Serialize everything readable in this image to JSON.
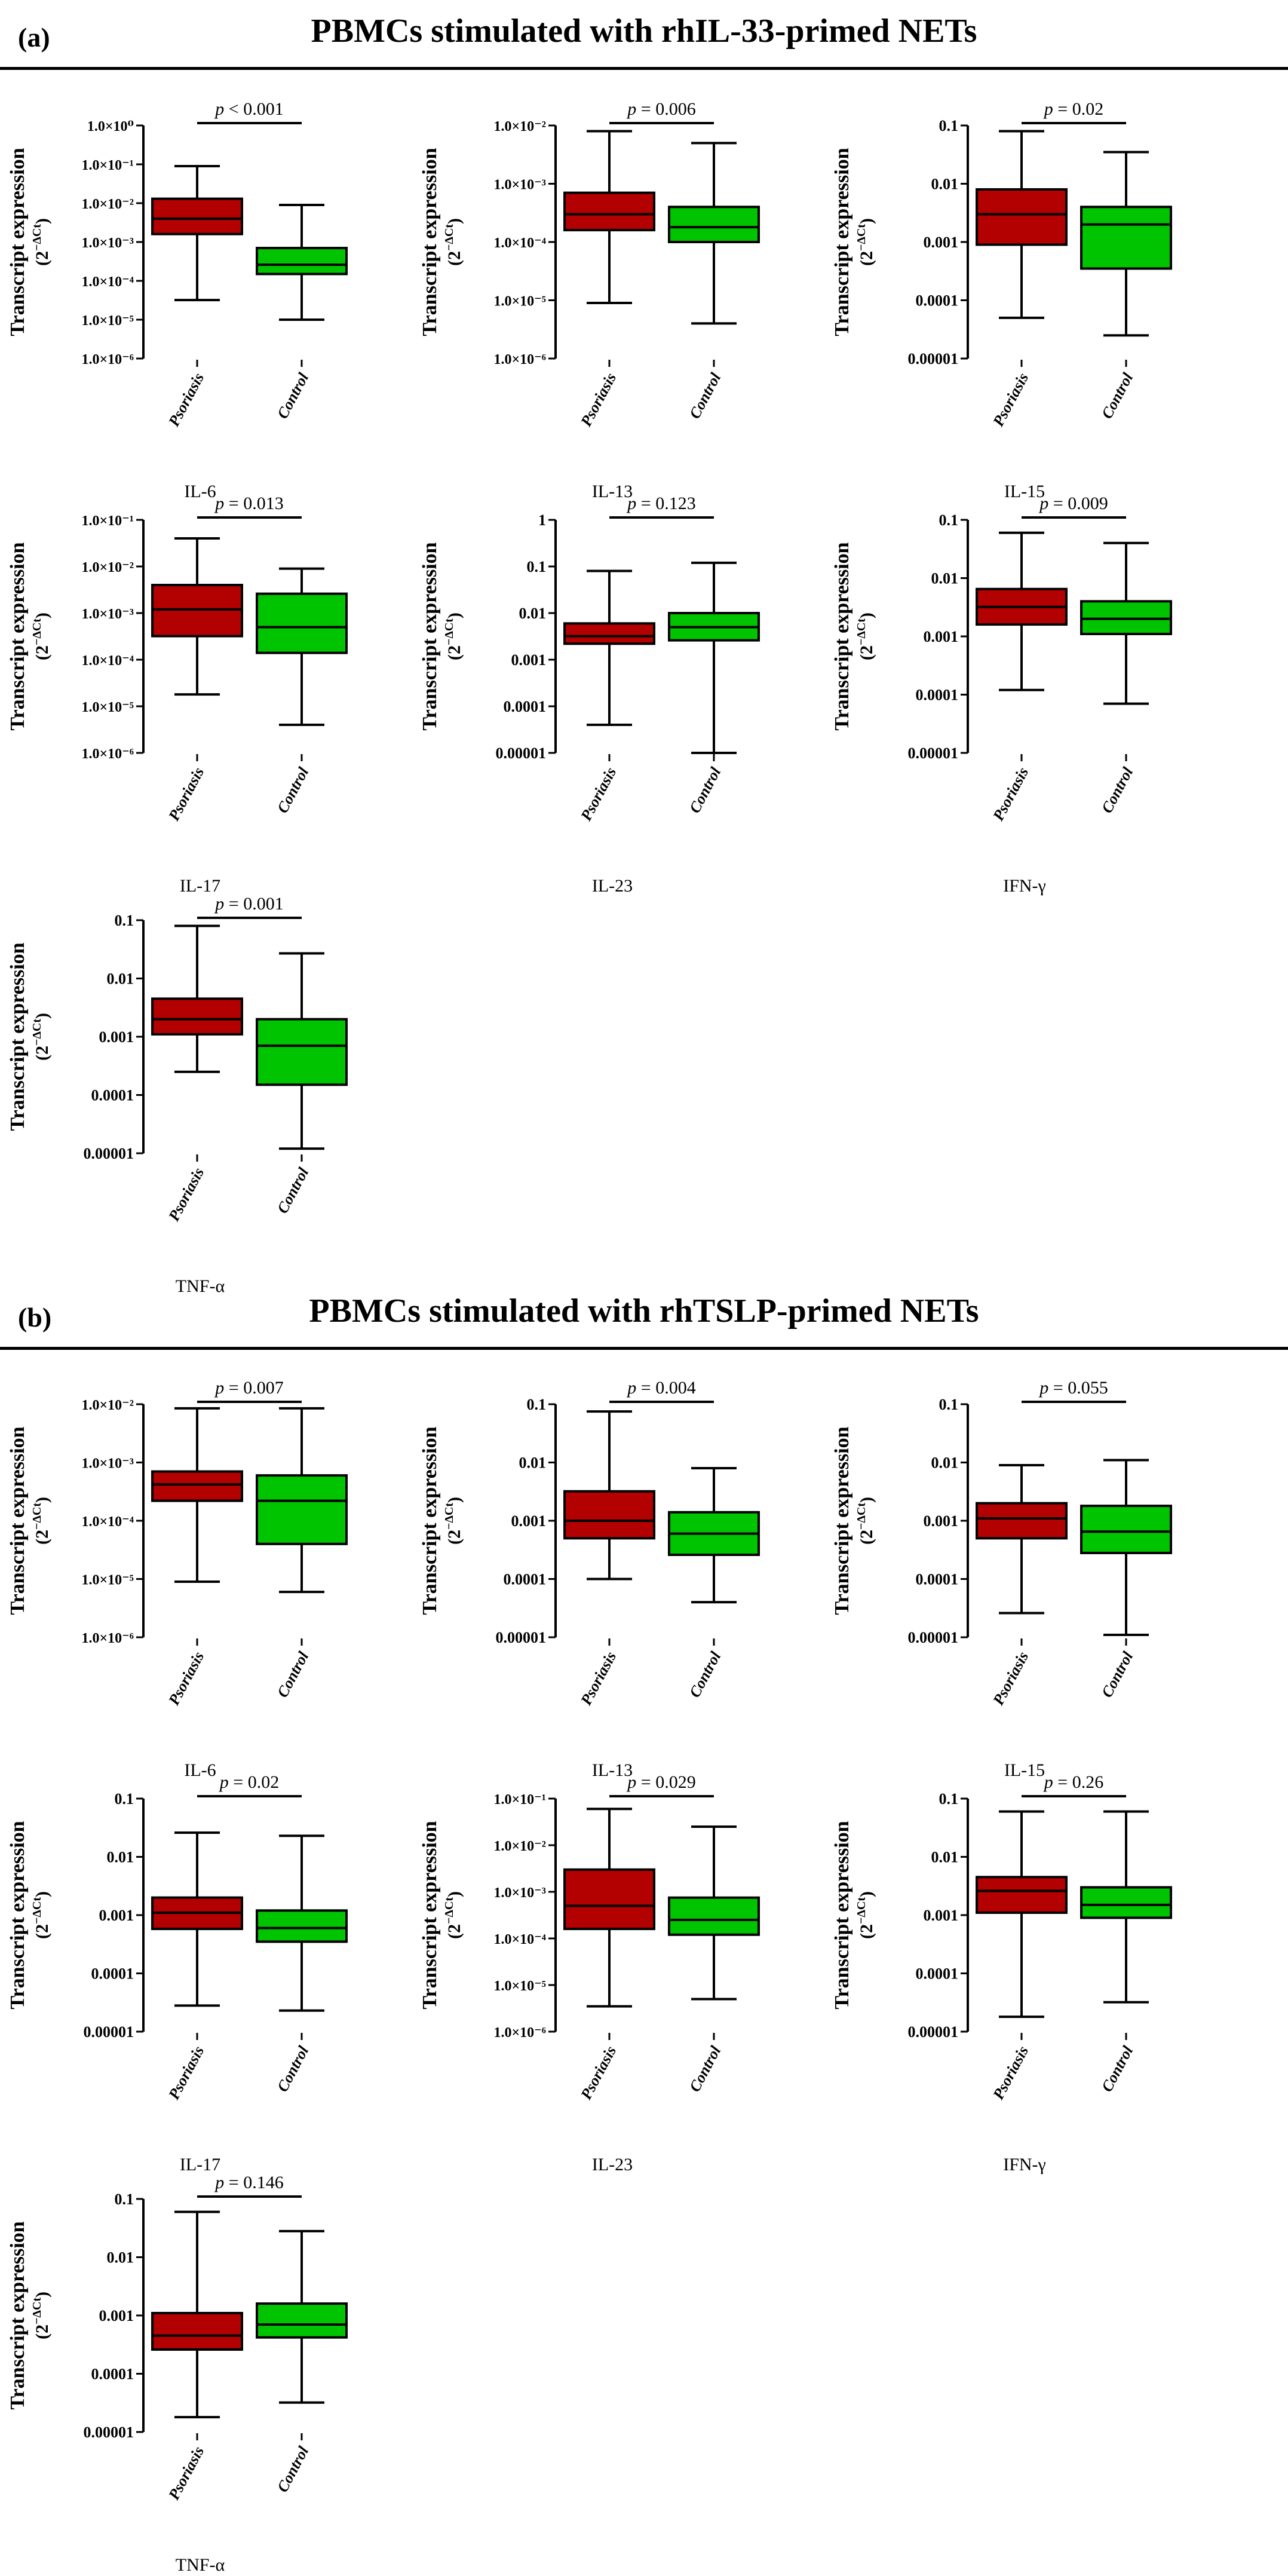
{
  "panels": [
    {
      "letter": "(a)",
      "title": "PBMCs  stimulated with rhIL-33-primed NETs"
    },
    {
      "letter": "(b)",
      "title": "PBMCs  stimulated with rhTSLP-primed NETs"
    }
  ],
  "axis_label_main": "Transcript expression",
  "axis_label_formula": "(2",
  "axis_label_exp": "−ΔCt",
  "axis_label_close": ")",
  "p_prefix": "p",
  "colors": {
    "psoriasis": "#b30000",
    "control": "#00c400"
  },
  "chart_data": [
    {
      "panel": "a",
      "type": "boxplot",
      "xlabel": "IL-6",
      "categories": [
        "Psoriasis",
        "Control"
      ],
      "p": "< 0.001",
      "yscale": "log",
      "ylim_exp": [
        -6,
        0
      ],
      "tick_style": "sci",
      "ticks": [
        "1.0×10⁰",
        "1.0×10⁻¹",
        "1.0×10⁻²",
        "1.0×10⁻³",
        "1.0×10⁻⁴",
        "1.0×10⁻⁵",
        "1.0×10⁻⁶"
      ],
      "boxes": [
        {
          "min": 3.2e-05,
          "q1": 0.0016,
          "median": 0.004,
          "q3": 0.013,
          "max": 0.09
        },
        {
          "min": 1e-05,
          "q1": 0.00015,
          "median": 0.00026,
          "q3": 0.0007,
          "max": 0.009
        }
      ]
    },
    {
      "panel": "a",
      "type": "boxplot",
      "xlabel": "IL-13",
      "categories": [
        "Psoriasis",
        "Control"
      ],
      "p": "= 0.006",
      "yscale": "log",
      "ylim_exp": [
        -6,
        -2
      ],
      "tick_style": "sci",
      "ticks": [
        "1.0×10⁻²",
        "1.0×10⁻³",
        "1.0×10⁻⁴",
        "1.0×10⁻⁵",
        "1.0×10⁻⁶"
      ],
      "boxes": [
        {
          "min": 9e-06,
          "q1": 0.00016,
          "median": 0.0003,
          "q3": 0.0007,
          "max": 0.008
        },
        {
          "min": 4e-06,
          "q1": 0.0001,
          "median": 0.00018,
          "q3": 0.0004,
          "max": 0.005
        }
      ]
    },
    {
      "panel": "a",
      "type": "boxplot",
      "xlabel": "IL-15",
      "categories": [
        "Psoriasis",
        "Control"
      ],
      "p": "= 0.02",
      "yscale": "log",
      "ylim_exp": [
        -5,
        -1
      ],
      "tick_style": "dec",
      "ticks": [
        "0.1",
        "0.01",
        "0.001",
        "0.0001",
        "0.00001"
      ],
      "boxes": [
        {
          "min": 5e-05,
          "q1": 0.0009,
          "median": 0.003,
          "q3": 0.008,
          "max": 0.08
        },
        {
          "min": 2.5e-05,
          "q1": 0.00035,
          "median": 0.002,
          "q3": 0.004,
          "max": 0.035
        }
      ]
    },
    {
      "panel": "a",
      "type": "boxplot",
      "xlabel": "IL-17",
      "categories": [
        "Psoriasis",
        "Control"
      ],
      "p": "= 0.013",
      "yscale": "log",
      "ylim_exp": [
        -6,
        -1
      ],
      "tick_style": "sci",
      "ticks": [
        "1.0×10⁻¹",
        "1.0×10⁻²",
        "1.0×10⁻³",
        "1.0×10⁻⁴",
        "1.0×10⁻⁵",
        "1.0×10⁻⁶"
      ],
      "boxes": [
        {
          "min": 1.8e-05,
          "q1": 0.00032,
          "median": 0.0012,
          "q3": 0.004,
          "max": 0.04
        },
        {
          "min": 4e-06,
          "q1": 0.00014,
          "median": 0.0005,
          "q3": 0.0026,
          "max": 0.009
        }
      ]
    },
    {
      "panel": "a",
      "type": "boxplot",
      "xlabel": "IL-23",
      "categories": [
        "Psoriasis",
        "Control"
      ],
      "p": "= 0.123",
      "yscale": "log",
      "ylim_exp": [
        -5,
        0
      ],
      "tick_style": "dec",
      "ticks": [
        "1",
        "0.1",
        "0.01",
        "0.001",
        "0.0001",
        "0.00001"
      ],
      "boxes": [
        {
          "min": 4e-05,
          "q1": 0.0022,
          "median": 0.0032,
          "q3": 0.006,
          "max": 0.08
        },
        {
          "min": 1e-05,
          "q1": 0.0026,
          "median": 0.005,
          "q3": 0.01,
          "max": 0.12
        }
      ]
    },
    {
      "panel": "a",
      "type": "boxplot",
      "xlabel": "IFN-γ",
      "categories": [
        "Psoriasis",
        "Control"
      ],
      "p": "= 0.009",
      "yscale": "log",
      "ylim_exp": [
        -5,
        -1
      ],
      "tick_style": "dec",
      "ticks": [
        "0.1",
        "0.01",
        "0.001",
        "0.0001",
        "0.00001"
      ],
      "boxes": [
        {
          "min": 0.00012,
          "q1": 0.0016,
          "median": 0.0032,
          "q3": 0.0065,
          "max": 0.06
        },
        {
          "min": 7e-05,
          "q1": 0.0011,
          "median": 0.002,
          "q3": 0.004,
          "max": 0.04
        }
      ]
    },
    {
      "panel": "a",
      "type": "boxplot",
      "xlabel": "TNF-α",
      "categories": [
        "Psoriasis",
        "Control"
      ],
      "p": "= 0.001",
      "yscale": "log",
      "ylim_exp": [
        -5,
        -1
      ],
      "tick_style": "dec",
      "ticks": [
        "0.1",
        "0.01",
        "0.001",
        "0.0001",
        "0.00001"
      ],
      "boxes": [
        {
          "min": 0.00025,
          "q1": 0.0011,
          "median": 0.002,
          "q3": 0.0045,
          "max": 0.08
        },
        {
          "min": 1.2e-05,
          "q1": 0.00015,
          "median": 0.0007,
          "q3": 0.002,
          "max": 0.027
        }
      ]
    },
    {
      "panel": "b",
      "type": "boxplot",
      "xlabel": "IL-6",
      "categories": [
        "Psoriasis",
        "Control"
      ],
      "p": "= 0.007",
      "yscale": "log",
      "ylim_exp": [
        -6,
        -2
      ],
      "tick_style": "sci",
      "ticks": [
        "1.0×10⁻²",
        "1.0×10⁻³",
        "1.0×10⁻⁴",
        "1.0×10⁻⁵",
        "1.0×10⁻⁶"
      ],
      "boxes": [
        {
          "min": 9e-06,
          "q1": 0.00022,
          "median": 0.00042,
          "q3": 0.0007,
          "max": 0.0085
        },
        {
          "min": 6e-06,
          "q1": 4e-05,
          "median": 0.00022,
          "q3": 0.0006,
          "max": 0.0085
        }
      ]
    },
    {
      "panel": "b",
      "type": "boxplot",
      "xlabel": "IL-13",
      "categories": [
        "Psoriasis",
        "Control"
      ],
      "p": "= 0.004",
      "yscale": "log",
      "ylim_exp": [
        -5,
        -1
      ],
      "tick_style": "dec",
      "ticks": [
        "0.1",
        "0.01",
        "0.001",
        "0.0001",
        "0.00001"
      ],
      "boxes": [
        {
          "min": 0.0001,
          "q1": 0.0005,
          "median": 0.001,
          "q3": 0.0032,
          "max": 0.075
        },
        {
          "min": 4e-05,
          "q1": 0.00026,
          "median": 0.0006,
          "q3": 0.0014,
          "max": 0.008
        }
      ]
    },
    {
      "panel": "b",
      "type": "boxplot",
      "xlabel": "IL-15",
      "categories": [
        "Psoriasis",
        "Control"
      ],
      "p": "= 0.055",
      "yscale": "log",
      "ylim_exp": [
        -5,
        -1
      ],
      "tick_style": "dec",
      "ticks": [
        "0.1",
        "0.01",
        "0.001",
        "0.0001",
        "0.00001"
      ],
      "boxes": [
        {
          "min": 2.6e-05,
          "q1": 0.0005,
          "median": 0.0011,
          "q3": 0.002,
          "max": 0.009
        },
        {
          "min": 1.1e-05,
          "q1": 0.00028,
          "median": 0.00065,
          "q3": 0.0018,
          "max": 0.011
        }
      ]
    },
    {
      "panel": "b",
      "type": "boxplot",
      "xlabel": "IL-17",
      "categories": [
        "Psoriasis",
        "Control"
      ],
      "p": "= 0.02",
      "yscale": "log",
      "ylim_exp": [
        -5,
        -1
      ],
      "tick_style": "dec",
      "ticks": [
        "0.1",
        "0.01",
        "0.001",
        "0.0001",
        "0.00001"
      ],
      "boxes": [
        {
          "min": 2.8e-05,
          "q1": 0.00058,
          "median": 0.0011,
          "q3": 0.002,
          "max": 0.026
        },
        {
          "min": 2.3e-05,
          "q1": 0.00035,
          "median": 0.0006,
          "q3": 0.0012,
          "max": 0.023
        }
      ]
    },
    {
      "panel": "b",
      "type": "boxplot",
      "xlabel": "IL-23",
      "categories": [
        "Psoriasis",
        "Control"
      ],
      "p": "= 0.029",
      "yscale": "log",
      "ylim_exp": [
        -6,
        -1
      ],
      "tick_style": "sci",
      "ticks": [
        "1.0×10⁻¹",
        "1.0×10⁻²",
        "1.0×10⁻³",
        "1.0×10⁻⁴",
        "1.0×10⁻⁵",
        "1.0×10⁻⁶"
      ],
      "boxes": [
        {
          "min": 3.5e-06,
          "q1": 0.00016,
          "median": 0.0005,
          "q3": 0.003,
          "max": 0.06
        },
        {
          "min": 5e-06,
          "q1": 0.00012,
          "median": 0.00025,
          "q3": 0.00075,
          "max": 0.025
        }
      ]
    },
    {
      "panel": "b",
      "type": "boxplot",
      "xlabel": "IFN-γ",
      "categories": [
        "Psoriasis",
        "Control"
      ],
      "p": "= 0.26",
      "yscale": "log",
      "ylim_exp": [
        -5,
        -1
      ],
      "tick_style": "dec",
      "ticks": [
        "0.1",
        "0.01",
        "0.001",
        "0.0001",
        "0.00001"
      ],
      "boxes": [
        {
          "min": 1.8e-05,
          "q1": 0.0011,
          "median": 0.0026,
          "q3": 0.0045,
          "max": 0.06
        },
        {
          "min": 3.2e-05,
          "q1": 0.0009,
          "median": 0.0015,
          "q3": 0.003,
          "max": 0.06
        }
      ]
    },
    {
      "panel": "b",
      "type": "boxplot",
      "xlabel": "TNF-α",
      "categories": [
        "Psoriasis",
        "Control"
      ],
      "p": "= 0.146",
      "yscale": "log",
      "ylim_exp": [
        -5,
        -1
      ],
      "tick_style": "dec",
      "ticks": [
        "0.1",
        "0.01",
        "0.001",
        "0.0001",
        "0.00001"
      ],
      "boxes": [
        {
          "min": 1.8e-05,
          "q1": 0.00026,
          "median": 0.00045,
          "q3": 0.0011,
          "max": 0.06
        },
        {
          "min": 3.2e-05,
          "q1": 0.00042,
          "median": 0.0007,
          "q3": 0.0016,
          "max": 0.028
        }
      ]
    }
  ]
}
